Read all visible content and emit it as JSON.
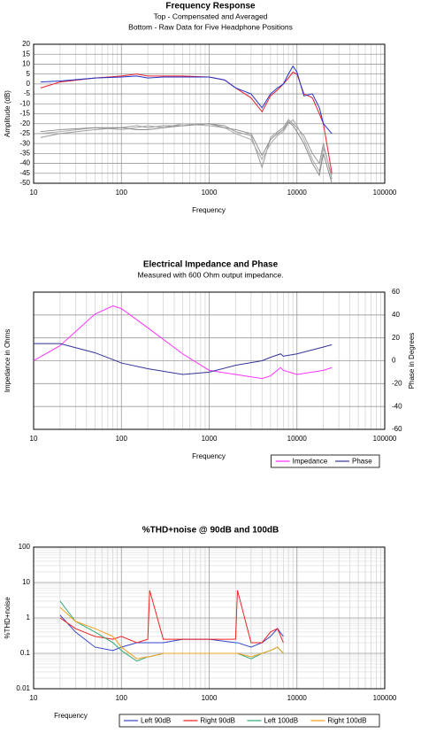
{
  "chart_data": [
    {
      "type": "line",
      "title": "Frequency Response",
      "subtitle": [
        "Top -  Compensated and Averaged",
        "Bottom - Raw Data for Five Headphone Positions"
      ],
      "xlabel": "Frequency",
      "ylabel": "Amplitude (dB)",
      "xscale": "log",
      "xlim": [
        10,
        100000
      ],
      "xticks": [
        10,
        100,
        1000,
        10000,
        100000
      ],
      "ylim": [
        -50,
        20
      ],
      "yticks": [
        -50,
        -45,
        -40,
        -35,
        -30,
        -25,
        -20,
        -15,
        -10,
        -5,
        0,
        5,
        10,
        15,
        20
      ],
      "grid": true,
      "minor_grid": true,
      "x": [
        12,
        20,
        50,
        100,
        150,
        200,
        300,
        500,
        1000,
        1500,
        2000,
        3000,
        4000,
        5000,
        6000,
        7000,
        8000,
        9000,
        10000,
        12000,
        15000,
        18000,
        20000,
        25000
      ],
      "series": [
        {
          "color": "#999999",
          "values": [
            -27,
            -25,
            -23,
            -22,
            -21,
            -22,
            -21,
            -21,
            -20,
            -21,
            -24,
            -26,
            -42,
            -27,
            -24,
            -22,
            -18,
            -20,
            -22,
            -26,
            -35,
            -40,
            -30,
            -48
          ]
        },
        {
          "color": "#aaaaaa",
          "values": [
            -25,
            -24,
            -22,
            -23,
            -22,
            -21,
            -22,
            -20,
            -21,
            -22,
            -25,
            -28,
            -38,
            -30,
            -26,
            -24,
            -20,
            -18,
            -21,
            -28,
            -38,
            -44,
            -32,
            -46
          ]
        },
        {
          "color": "#8c8c8c",
          "values": [
            -24,
            -23,
            -22,
            -22,
            -23,
            -23,
            -22,
            -21,
            -20,
            -22,
            -23,
            -25,
            -36,
            -28,
            -25,
            -23,
            -19,
            -21,
            -24,
            -30,
            -40,
            -46,
            -35,
            -50
          ]
        },
        {
          "color": "#e8202a",
          "values": [
            -2,
            1,
            3,
            4,
            5,
            4,
            4,
            4,
            3.5,
            2,
            -2,
            -7,
            -14,
            -6,
            -3,
            0,
            3,
            6,
            5,
            -5,
            -7,
            -15,
            -20,
            -45
          ]
        },
        {
          "color": "#2233cc",
          "values": [
            1,
            1.5,
            3,
            3.5,
            4,
            3,
            3.5,
            3.5,
            3.5,
            2,
            -2,
            -5,
            -12,
            -5,
            -2,
            0,
            5,
            9,
            6,
            -6,
            -5,
            -12,
            -20,
            -25
          ]
        }
      ]
    },
    {
      "type": "line",
      "title": "Electrical Impedance and Phase",
      "subtitle": [
        "Measured with 600 Ohm output impedance."
      ],
      "xlabel": "Frequency",
      "ylabel": "Impedance in Ohms",
      "y2label": "Phase in Degrees",
      "xscale": "log",
      "xlim": [
        10,
        100000
      ],
      "xticks": [
        10,
        100,
        1000,
        10000,
        100000
      ],
      "ylim": [
        0,
        100
      ],
      "y2lim": [
        -60,
        60
      ],
      "y2ticks": [
        -60,
        -40,
        -20,
        0,
        20,
        40,
        60
      ],
      "grid": true,
      "minor_grid": true,
      "legend": "below-right",
      "x": [
        10,
        20,
        50,
        80,
        100,
        200,
        500,
        1000,
        2000,
        4000,
        5000,
        6500,
        7000,
        10000,
        20000,
        25000
      ],
      "series": [
        {
          "name": "Impedance",
          "color": "#ff33ff",
          "values": [
            50,
            61,
            84,
            90,
            88,
            74,
            55,
            43,
            40,
            37,
            39,
            45,
            43,
            40,
            43,
            45
          ]
        },
        {
          "name": "Phase",
          "color": "#333399",
          "axis": "y2",
          "values": [
            15,
            15,
            7,
            1,
            -2,
            -7,
            -12,
            -10,
            -4,
            0,
            3,
            6,
            4,
            6,
            12,
            14
          ]
        }
      ]
    },
    {
      "type": "line",
      "title": "%THD+noise @ 90dB and 100dB",
      "xlabel": "Frequency",
      "ylabel": "%THD+noise",
      "xscale": "log",
      "xlim": [
        10,
        100000
      ],
      "xticks": [
        10,
        100,
        1000,
        10000,
        100000
      ],
      "yscale": "log",
      "ylim": [
        0.01,
        100
      ],
      "yticks": [
        0.01,
        0.1,
        1,
        10,
        100
      ],
      "grid": true,
      "minor_grid": true,
      "legend": "below-right",
      "x": [
        20,
        30,
        50,
        80,
        100,
        150,
        200,
        210,
        300,
        500,
        1000,
        2000,
        2100,
        3000,
        4000,
        5000,
        6000,
        7000
      ],
      "series": [
        {
          "name": "Left 90dB",
          "color": "#3344cc",
          "values": [
            1.2,
            0.4,
            0.15,
            0.12,
            0.15,
            0.2,
            0.2,
            0.2,
            0.2,
            0.25,
            0.25,
            0.2,
            0.2,
            0.15,
            0.2,
            0.3,
            0.5,
            0.3
          ]
        },
        {
          "name": "Right 90dB",
          "color": "#ee2222",
          "values": [
            1.0,
            0.5,
            0.3,
            0.25,
            0.3,
            0.2,
            0.25,
            6,
            0.25,
            0.25,
            0.25,
            0.25,
            6,
            0.2,
            0.2,
            0.4,
            0.5,
            0.2
          ]
        },
        {
          "name": "Left 100dB",
          "color": "#33aa77",
          "values": [
            3,
            0.8,
            0.4,
            0.2,
            0.12,
            0.06,
            0.08,
            0.08,
            0.1,
            0.1,
            0.1,
            0.1,
            0.1,
            0.07,
            0.1,
            0.12,
            0.15,
            0.1
          ]
        },
        {
          "name": "Right 100dB",
          "color": "#f0a020",
          "values": [
            2,
            0.8,
            0.5,
            0.3,
            0.15,
            0.07,
            0.08,
            0.08,
            0.1,
            0.1,
            0.1,
            0.1,
            0.1,
            0.08,
            0.1,
            0.12,
            0.15,
            0.1
          ]
        }
      ]
    }
  ]
}
